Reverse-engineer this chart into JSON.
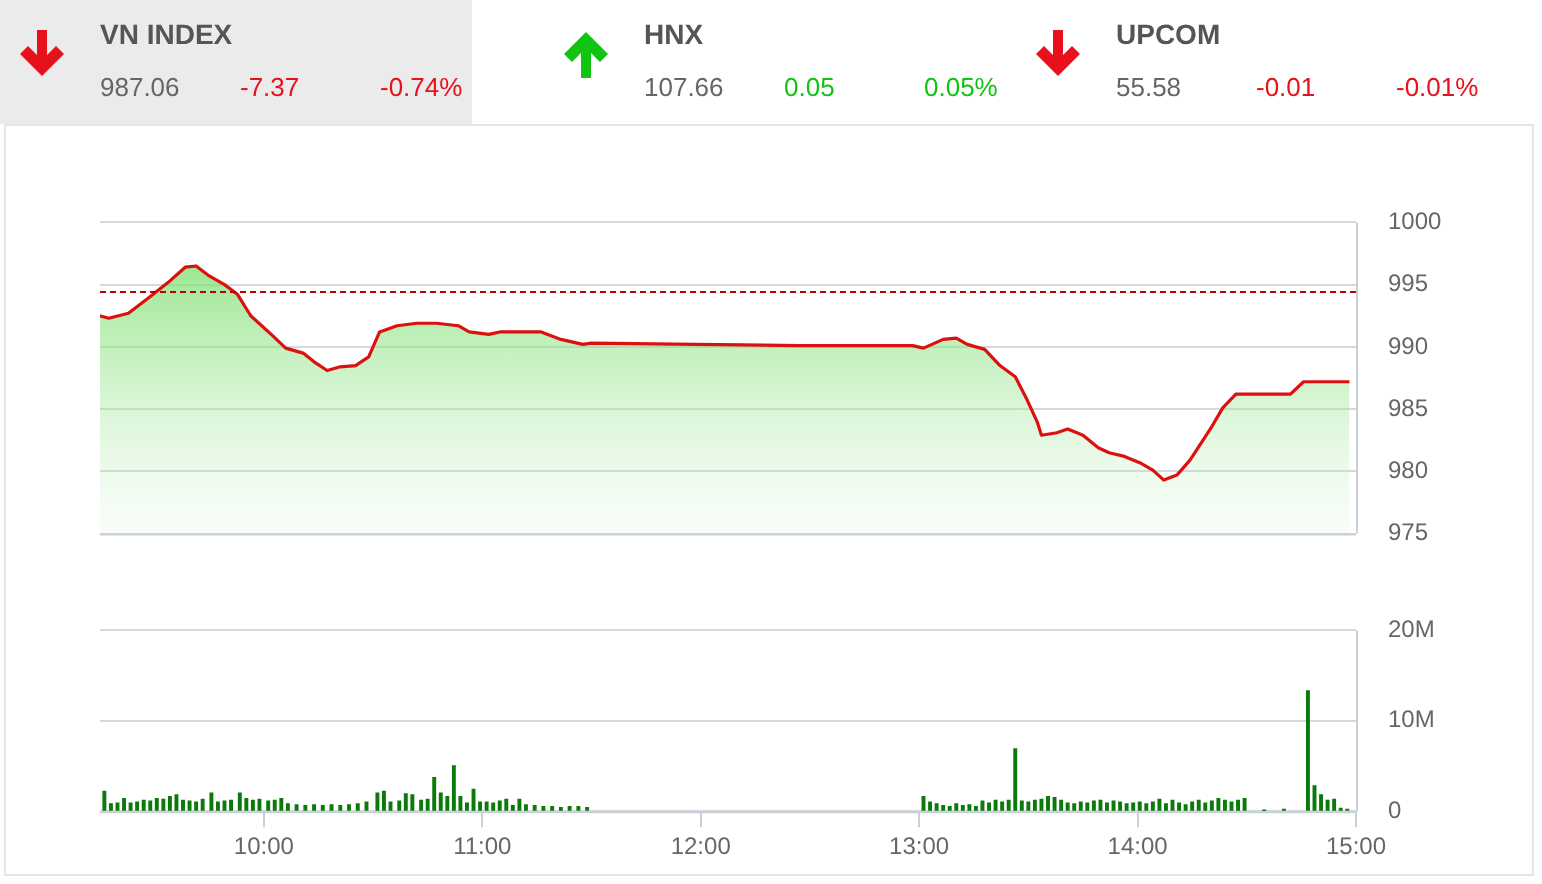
{
  "chart_data": [
    {
      "type": "other",
      "colors": [
        "#e8101a",
        "#12c412",
        "#e8101a"
      ],
      "annotations": [
        "VN INDEX",
        "987.06",
        "-7.37",
        "-0.74%",
        "HNX",
        "107.66",
        "0.05",
        "0.05%",
        "UPCOM",
        "55.58",
        "-0.01",
        "-0.01%"
      ]
    },
    {
      "type": "area",
      "marker": "none",
      "grid": "y",
      "legend": false,
      "tick_labels": "y",
      "xlim": [
        9.25,
        15
      ],
      "ylim": [
        975,
        1000
      ],
      "yticks": [
        975,
        980,
        985,
        990,
        995,
        1000
      ],
      "ref_lines": [
        {
          "axis": "y",
          "value": 994.4,
          "color": "#c00000",
          "line_style": "dashed"
        }
      ],
      "series": [
        {
          "color": "#dd1010",
          "x": [
            9.25,
            9.29,
            9.38,
            9.47,
            9.57,
            9.64,
            9.69,
            9.75,
            9.82,
            9.88,
            9.94,
            10.04,
            10.1,
            10.18,
            10.23,
            10.29,
            10.35,
            10.42,
            10.48,
            10.53,
            10.61,
            10.7,
            10.79,
            10.89,
            10.94,
            11.03,
            11.08,
            11.17,
            11.27,
            11.36,
            11.46,
            11.5,
            11.98,
            12.45,
            12.97,
            13.02,
            13.11,
            13.17,
            13.22,
            13.3,
            13.37,
            13.44,
            13.49,
            13.54,
            13.56,
            13.63,
            13.68,
            13.75,
            13.82,
            13.87,
            13.94,
            14.01,
            14.07,
            14.12,
            14.18,
            14.24,
            14.34,
            14.39,
            14.45,
            14.7,
            14.76,
            14.97
          ],
          "values": [
            992.5,
            992.3,
            992.7,
            993.9,
            995.3,
            996.4,
            996.5,
            995.7,
            995.0,
            994.2,
            992.5,
            990.9,
            989.9,
            989.5,
            988.8,
            988.1,
            988.4,
            988.5,
            989.2,
            991.2,
            991.7,
            991.9,
            991.9,
            991.7,
            991.2,
            991.0,
            991.2,
            991.2,
            991.2,
            990.6,
            990.2,
            990.3,
            990.2,
            990.1,
            990.1,
            989.9,
            990.6,
            990.7,
            990.2,
            989.8,
            988.5,
            987.6,
            985.9,
            984.0,
            982.9,
            983.1,
            983.4,
            982.9,
            981.9,
            981.5,
            981.2,
            980.7,
            980.1,
            979.3,
            979.7,
            980.9,
            983.6,
            985.1,
            986.2,
            986.2,
            987.2,
            987.2
          ]
        }
      ]
    },
    {
      "type": "bar",
      "grid": "y",
      "legend": false,
      "xlim": [
        9.25,
        15
      ],
      "xticks": [
        {
          "value": 10,
          "label": "10:00"
        },
        {
          "value": 11,
          "label": "11:00"
        },
        {
          "value": 12,
          "label": "12:00"
        },
        {
          "value": 13,
          "label": "13:00"
        },
        {
          "value": 14,
          "label": "14:00"
        },
        {
          "value": 15,
          "label": "15:00"
        }
      ],
      "ylim": [
        0,
        20
      ],
      "yticks": [
        0,
        {
          "value": 10,
          "label": "10M"
        },
        {
          "value": 20,
          "label": "20M"
        }
      ],
      "series": [
        {
          "color": "#0a7a0a",
          "x": [
            9.27,
            9.3,
            9.33,
            9.36,
            9.39,
            9.42,
            9.45,
            9.48,
            9.51,
            9.54,
            9.57,
            9.6,
            9.63,
            9.66,
            9.69,
            9.72,
            9.76,
            9.79,
            9.82,
            9.85,
            9.89,
            9.92,
            9.95,
            9.98,
            10.02,
            10.05,
            10.08,
            10.11,
            10.15,
            10.19,
            10.23,
            10.27,
            10.31,
            10.35,
            10.39,
            10.43,
            10.47,
            10.52,
            10.55,
            10.58,
            10.62,
            10.65,
            10.68,
            10.72,
            10.75,
            10.78,
            10.81,
            10.84,
            10.87,
            10.9,
            10.93,
            10.96,
            10.99,
            11.02,
            11.05,
            11.08,
            11.11,
            11.14,
            11.17,
            11.2,
            11.24,
            11.28,
            11.32,
            11.36,
            11.4,
            11.44,
            11.48,
            13.02,
            13.05,
            13.08,
            13.11,
            13.14,
            13.17,
            13.2,
            13.23,
            13.26,
            13.29,
            13.32,
            13.35,
            13.38,
            13.41,
            13.44,
            13.47,
            13.5,
            13.53,
            13.56,
            13.59,
            13.62,
            13.65,
            13.68,
            13.71,
            13.74,
            13.77,
            13.8,
            13.83,
            13.86,
            13.89,
            13.92,
            13.95,
            13.98,
            14.01,
            14.04,
            14.07,
            14.1,
            14.13,
            14.16,
            14.19,
            14.22,
            14.25,
            14.28,
            14.31,
            14.34,
            14.37,
            14.4,
            14.43,
            14.46,
            14.49,
            14.58,
            14.67,
            14.78,
            14.81,
            14.84,
            14.87,
            14.9,
            14.93,
            14.96
          ],
          "values": [
            2.2,
            0.8,
            0.9,
            1.4,
            0.9,
            1.0,
            1.2,
            1.1,
            1.4,
            1.3,
            1.6,
            1.8,
            1.2,
            1.1,
            1.0,
            1.3,
            2.0,
            1.0,
            1.1,
            1.2,
            2.0,
            1.4,
            1.2,
            1.3,
            1.1,
            1.2,
            1.4,
            0.8,
            0.7,
            0.6,
            0.7,
            0.6,
            0.7,
            0.6,
            0.7,
            0.8,
            1.0,
            2.0,
            2.2,
            1.0,
            1.1,
            1.9,
            1.8,
            1.2,
            1.3,
            3.7,
            2.0,
            1.6,
            5.0,
            1.6,
            0.9,
            2.4,
            1.0,
            1.0,
            0.9,
            1.1,
            1.3,
            0.6,
            1.3,
            0.7,
            0.6,
            0.5,
            0.5,
            0.4,
            0.5,
            0.5,
            0.4,
            1.6,
            1.0,
            0.8,
            0.6,
            0.5,
            0.8,
            0.6,
            0.7,
            0.5,
            1.1,
            0.9,
            1.2,
            1.0,
            1.2,
            6.9,
            1.1,
            1.0,
            1.2,
            1.3,
            1.6,
            1.5,
            1.2,
            0.9,
            0.8,
            1.0,
            0.9,
            1.1,
            1.2,
            0.9,
            1.1,
            1.0,
            0.8,
            0.9,
            1.0,
            0.8,
            1.0,
            1.3,
            0.8,
            1.2,
            0.9,
            0.7,
            1.0,
            1.2,
            0.9,
            1.1,
            1.4,
            1.2,
            1.0,
            1.2,
            1.4,
            0.1,
            0.2,
            13.3,
            2.8,
            1.8,
            1.2,
            1.3,
            0.3,
            0.2
          ]
        }
      ]
    }
  ]
}
